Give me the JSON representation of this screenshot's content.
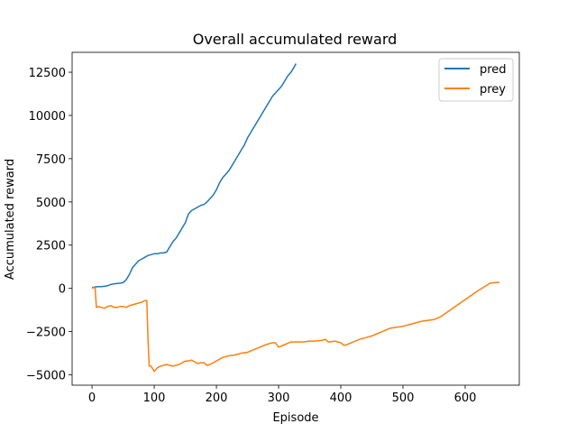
{
  "chart_data": {
    "type": "line",
    "title": "Overall accumulated reward",
    "xlabel": "Episode",
    "ylabel": "Accumulated reward",
    "xlim": [
      -32,
      687
    ],
    "ylim": [
      -5600,
      13650
    ],
    "xticks": [
      0,
      100,
      200,
      300,
      400,
      500,
      600
    ],
    "xtick_labels": [
      "0",
      "100",
      "200",
      "300",
      "400",
      "500",
      "600"
    ],
    "yticks": [
      -5000,
      -2500,
      0,
      2500,
      5000,
      7500,
      10000,
      12500
    ],
    "ytick_labels": [
      "−5000",
      "−2500",
      "0",
      "2500",
      "5000",
      "7500",
      "10000",
      "12500"
    ],
    "grid": false,
    "legend_position": "top-right",
    "series": [
      {
        "name": "pred",
        "color": "#1f77b4",
        "x": [
          0,
          5,
          10,
          15,
          20,
          25,
          30,
          35,
          40,
          45,
          50,
          55,
          60,
          65,
          70,
          75,
          80,
          85,
          90,
          95,
          100,
          105,
          110,
          115,
          120,
          125,
          130,
          135,
          140,
          145,
          150,
          155,
          160,
          165,
          170,
          175,
          180,
          185,
          190,
          195,
          200,
          205,
          210,
          215,
          220,
          225,
          230,
          235,
          240,
          245,
          250,
          255,
          260,
          265,
          270,
          275,
          280,
          285,
          290,
          295,
          300,
          305,
          310,
          315,
          320,
          325,
          328
        ],
        "values": [
          50,
          80,
          100,
          100,
          120,
          150,
          220,
          260,
          280,
          300,
          330,
          500,
          800,
          1200,
          1400,
          1600,
          1700,
          1800,
          1900,
          1950,
          2000,
          2000,
          2050,
          2050,
          2100,
          2400,
          2700,
          2900,
          3200,
          3500,
          3800,
          4300,
          4500,
          4600,
          4700,
          4800,
          4850,
          5000,
          5200,
          5400,
          5700,
          6100,
          6400,
          6600,
          6800,
          7100,
          7400,
          7700,
          8000,
          8300,
          8700,
          9000,
          9300,
          9600,
          9900,
          10200,
          10500,
          10800,
          11100,
          11300,
          11500,
          11700,
          12000,
          12300,
          12500,
          12800,
          13000
        ]
      },
      {
        "name": "prey",
        "color": "#ff7f0e",
        "x": [
          0,
          3,
          5,
          7,
          10,
          15,
          20,
          25,
          30,
          35,
          40,
          45,
          50,
          55,
          60,
          65,
          70,
          75,
          80,
          85,
          88,
          90,
          92,
          95,
          100,
          105,
          110,
          115,
          120,
          125,
          130,
          135,
          140,
          145,
          150,
          155,
          160,
          165,
          170,
          175,
          180,
          185,
          190,
          200,
          210,
          220,
          230,
          240,
          250,
          260,
          270,
          280,
          290,
          295,
          300,
          310,
          320,
          330,
          340,
          350,
          360,
          370,
          375,
          380,
          390,
          400,
          405,
          410,
          420,
          430,
          440,
          450,
          460,
          470,
          480,
          490,
          500,
          510,
          520,
          530,
          540,
          550,
          560,
          580,
          600,
          620,
          640,
          655
        ],
        "values": [
          0,
          50,
          30,
          -1100,
          -1050,
          -1100,
          -1150,
          -1050,
          -1000,
          -1100,
          -1100,
          -1050,
          -1050,
          -1100,
          -1000,
          -950,
          -900,
          -850,
          -800,
          -700,
          -700,
          -3000,
          -4500,
          -4500,
          -4800,
          -4600,
          -4500,
          -4450,
          -4400,
          -4450,
          -4500,
          -4450,
          -4400,
          -4300,
          -4200,
          -4200,
          -4150,
          -4250,
          -4350,
          -4300,
          -4300,
          -4450,
          -4400,
          -4200,
          -4000,
          -3900,
          -3850,
          -3750,
          -3700,
          -3550,
          -3400,
          -3250,
          -3150,
          -3150,
          -3400,
          -3250,
          -3100,
          -3100,
          -3100,
          -3050,
          -3050,
          -3000,
          -2950,
          -3100,
          -3050,
          -3150,
          -3300,
          -3250,
          -3100,
          -2950,
          -2850,
          -2750,
          -2600,
          -2450,
          -2300,
          -2250,
          -2200,
          -2100,
          -2000,
          -1900,
          -1850,
          -1800,
          -1650,
          -1150,
          -650,
          -150,
          300,
          350
        ]
      }
    ]
  }
}
